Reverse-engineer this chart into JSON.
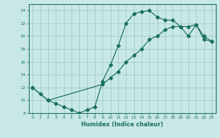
{
  "xlabel": "Humidex (Indice chaleur)",
  "bg_color": "#c8e8e8",
  "grid_color": "#a0c8c8",
  "line_color": "#1a7060",
  "xlim": [
    -0.5,
    23.5
  ],
  "ylim": [
    8,
    25
  ],
  "xticks": [
    0,
    1,
    2,
    3,
    4,
    5,
    6,
    7,
    8,
    9,
    10,
    11,
    12,
    13,
    14,
    15,
    16,
    17,
    18,
    19,
    20,
    21,
    22,
    23
  ],
  "yticks": [
    8,
    10,
    12,
    14,
    16,
    18,
    20,
    22,
    24
  ],
  "curve1_x": [
    0,
    1,
    2,
    3,
    4,
    5,
    6,
    7,
    8,
    9,
    10,
    11,
    12,
    13,
    14,
    15,
    16,
    17,
    18,
    19,
    20,
    21,
    22,
    23
  ],
  "curve1_y": [
    12,
    11,
    10,
    9.5,
    9,
    8.5,
    8,
    8.5,
    9,
    13,
    15.5,
    18.5,
    22,
    23.5,
    23.8,
    24,
    23,
    22.5,
    22.5,
    21.5,
    20,
    21.8,
    20,
    19.2
  ],
  "curve2_x": [
    0,
    2,
    9,
    10,
    11,
    12,
    13,
    14,
    15,
    16,
    17,
    18,
    19,
    20,
    21,
    22,
    23
  ],
  "curve2_y": [
    12,
    10,
    12.5,
    13.5,
    14.5,
    16,
    17,
    18,
    19.5,
    20,
    21,
    21.5,
    21.5,
    21.5,
    21.8,
    19.5,
    19.2
  ]
}
